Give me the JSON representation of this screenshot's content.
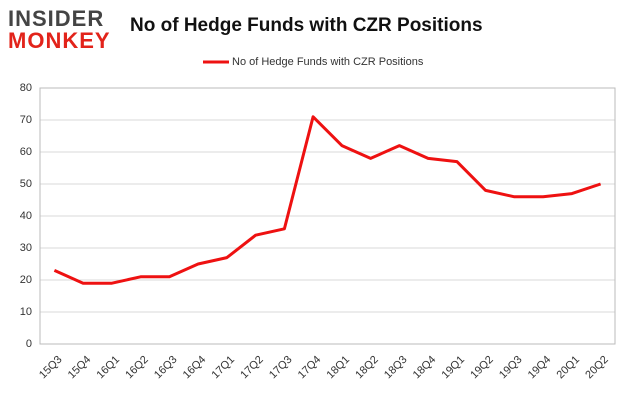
{
  "logo": {
    "top": "INSIDER",
    "bottom": "MONKEY"
  },
  "chart_data": {
    "type": "line",
    "title": "No of Hedge Funds with CZR Positions",
    "categories": [
      "15Q3",
      "15Q4",
      "16Q1",
      "16Q2",
      "16Q3",
      "16Q4",
      "17Q1",
      "17Q2",
      "17Q3",
      "17Q4",
      "18Q1",
      "18Q2",
      "18Q3",
      "18Q4",
      "19Q1",
      "19Q2",
      "19Q3",
      "19Q4",
      "20Q1",
      "20Q2"
    ],
    "series": [
      {
        "name": "No of Hedge Funds with CZR Positions",
        "color": "#ee1111",
        "values": [
          23,
          19,
          19,
          21,
          21,
          25,
          27,
          34,
          36,
          71,
          62,
          58,
          62,
          58,
          57,
          48,
          46,
          46,
          47,
          50
        ]
      }
    ],
    "ylim": [
      0,
      80
    ],
    "yticks": [
      0,
      10,
      20,
      30,
      40,
      50,
      60,
      70,
      80
    ],
    "grid": true,
    "legend": "top"
  }
}
